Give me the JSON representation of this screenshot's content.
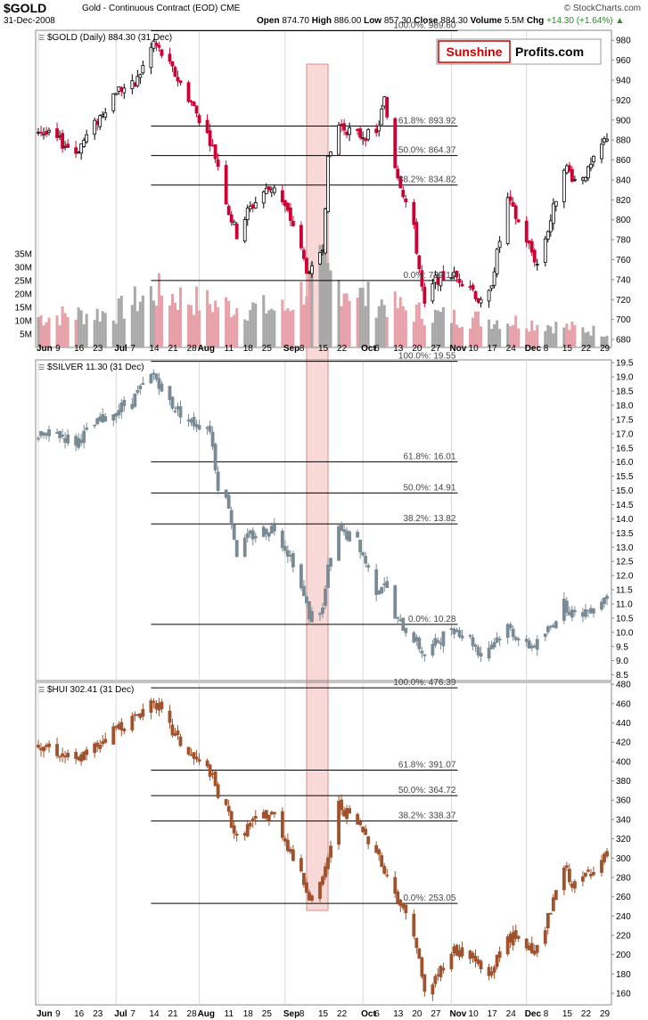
{
  "header": {
    "symbol": "$GOLD",
    "description": "Gold - Continuous Contract (EOD)",
    "exchange": "CME",
    "date": "31-Dec-2008",
    "open_label": "Open",
    "open": "874.70",
    "high_label": "High",
    "high": "886.00",
    "low_label": "Low",
    "low": "857.30",
    "close_label": "Close",
    "close": "884.30",
    "volume_label": "Volume",
    "volume": "5.5M",
    "chg_label": "Chg",
    "chg": "+14.30 (+1.64%)",
    "brand": "© StockCharts.com",
    "logo_left": "Sunshine",
    "logo_right": "Profits.com"
  },
  "colors": {
    "up": "#000000",
    "down": "#cc0033",
    "silver": "#7a8a95",
    "hui": "#a0522d",
    "highlight": "#f4b8b8",
    "vol_up": "#a8a8a8",
    "vol_down": "#e8a0a8"
  },
  "x_axis": {
    "labels": [
      {
        "text": "Jun",
        "bold": true,
        "date": "2008-06-02"
      },
      {
        "text": "9",
        "date": "2008-06-09"
      },
      {
        "text": "16",
        "date": "2008-06-16"
      },
      {
        "text": "23",
        "date": "2008-06-23"
      },
      {
        "text": "Jul",
        "bold": true,
        "date": "2008-07-01"
      },
      {
        "text": "7",
        "date": "2008-07-07"
      },
      {
        "text": "14",
        "date": "2008-07-14"
      },
      {
        "text": "21",
        "date": "2008-07-21"
      },
      {
        "text": "28",
        "date": "2008-07-28"
      },
      {
        "text": "Aug",
        "bold": true,
        "date": "2008-08-01"
      },
      {
        "text": "11",
        "date": "2008-08-11"
      },
      {
        "text": "18",
        "date": "2008-08-18"
      },
      {
        "text": "25",
        "date": "2008-08-25"
      },
      {
        "text": "Sep",
        "bold": true,
        "date": "2008-09-02"
      },
      {
        "text": "8",
        "date": "2008-09-08"
      },
      {
        "text": "15",
        "date": "2008-09-15"
      },
      {
        "text": "22",
        "date": "2008-09-22"
      },
      {
        "text": "Oct",
        "bold": true,
        "date": "2008-10-01"
      },
      {
        "text": "6",
        "date": "2008-10-06"
      },
      {
        "text": "13",
        "date": "2008-10-13"
      },
      {
        "text": "20",
        "date": "2008-10-20"
      },
      {
        "text": "27",
        "date": "2008-10-27"
      },
      {
        "text": "Nov",
        "bold": true,
        "date": "2008-11-03"
      },
      {
        "text": "10",
        "date": "2008-11-10"
      },
      {
        "text": "17",
        "date": "2008-11-17"
      },
      {
        "text": "24",
        "date": "2008-11-24"
      },
      {
        "text": "Dec",
        "bold": true,
        "date": "2008-12-01"
      },
      {
        "text": "8",
        "date": "2008-12-08"
      },
      {
        "text": "15",
        "date": "2008-12-15"
      },
      {
        "text": "22",
        "date": "2008-12-22"
      },
      {
        "text": "29",
        "date": "2008-12-29"
      }
    ]
  },
  "highlight_range": [
    "2008-09-10",
    "2008-09-18"
  ],
  "chart_data": [
    {
      "type": "candlestick",
      "title": "$GOLD (Daily) 884.30 (31 Dec)",
      "ylim": [
        672,
        990
      ],
      "yticks": [
        680,
        700,
        720,
        740,
        760,
        780,
        800,
        820,
        840,
        860,
        880,
        900,
        920,
        940,
        960,
        980
      ],
      "volume_ticks": [
        "5M",
        "10M",
        "15M",
        "20M",
        "25M",
        "30M",
        "35M"
      ],
      "volume_values": [
        5,
        10,
        15,
        20,
        25,
        30,
        35
      ],
      "path": [
        [
          "2008-06-02",
          890
        ],
        [
          "2008-06-09",
          880
        ],
        [
          "2008-06-16",
          868
        ],
        [
          "2008-06-23",
          895
        ],
        [
          "2008-07-01",
          930
        ],
        [
          "2008-07-08",
          935
        ],
        [
          "2008-07-15",
          978
        ],
        [
          "2008-07-22",
          950
        ],
        [
          "2008-07-29",
          918
        ],
        [
          "2008-08-05",
          880
        ],
        [
          "2008-08-08",
          855
        ],
        [
          "2008-08-12",
          808
        ],
        [
          "2008-08-15",
          785
        ],
        [
          "2008-08-19",
          808
        ],
        [
          "2008-08-25",
          828
        ],
        [
          "2008-08-29",
          834
        ],
        [
          "2008-09-05",
          795
        ],
        [
          "2008-09-11",
          742
        ],
        [
          "2008-09-16",
          775
        ],
        [
          "2008-09-18",
          858
        ],
        [
          "2008-09-22",
          895
        ],
        [
          "2008-09-29",
          885
        ],
        [
          "2008-10-06",
          885
        ],
        [
          "2008-10-09",
          920
        ],
        [
          "2008-10-13",
          855
        ],
        [
          "2008-10-20",
          790
        ],
        [
          "2008-10-24",
          712
        ],
        [
          "2008-10-28",
          740
        ],
        [
          "2008-11-03",
          745
        ],
        [
          "2008-11-10",
          735
        ],
        [
          "2008-11-14",
          715
        ],
        [
          "2008-11-17",
          725
        ],
        [
          "2008-11-24",
          820
        ],
        [
          "2008-12-01",
          780
        ],
        [
          "2008-12-05",
          755
        ],
        [
          "2008-12-10",
          800
        ],
        [
          "2008-12-15",
          855
        ],
        [
          "2008-12-19",
          840
        ],
        [
          "2008-12-24",
          848
        ],
        [
          "2008-12-31",
          884
        ]
      ],
      "volume_path": [
        [
          "2008-06-02",
          12
        ],
        [
          "2008-07-01",
          14
        ],
        [
          "2008-07-15",
          22
        ],
        [
          "2008-08-01",
          18
        ],
        [
          "2008-08-15",
          16
        ],
        [
          "2008-09-02",
          15
        ],
        [
          "2008-09-15",
          30
        ],
        [
          "2008-10-01",
          20
        ],
        [
          "2008-10-20",
          14
        ],
        [
          "2008-11-03",
          12
        ],
        [
          "2008-12-01",
          10
        ],
        [
          "2008-12-31",
          6
        ]
      ],
      "fib_levels": [
        {
          "label": "100.0%: 989.60",
          "value": 989.6
        },
        {
          "label": "61.8%: 893.92",
          "value": 893.92
        },
        {
          "label": "50.0%: 864.37",
          "value": 864.37
        },
        {
          "label": "38.2%: 834.82",
          "value": 834.82
        },
        {
          "label": "0.0%: 739.10",
          "value": 739.1
        }
      ],
      "fib_range": [
        "2008-07-14",
        "2008-10-29"
      ]
    },
    {
      "type": "candlestick",
      "title": "$SILVER 11.30 (31 Dec)",
      "ylim": [
        8.3,
        19.6
      ],
      "yticks": [
        8.5,
        9.0,
        9.5,
        10.0,
        10.5,
        11.0,
        11.5,
        12.0,
        12.5,
        13.0,
        13.5,
        14.0,
        14.5,
        15.0,
        15.5,
        16.0,
        16.5,
        17.0,
        17.5,
        18.0,
        18.5,
        19.0,
        19.5
      ],
      "path": [
        [
          "2008-06-02",
          16.9
        ],
        [
          "2008-06-09",
          17.0
        ],
        [
          "2008-06-16",
          16.7
        ],
        [
          "2008-06-23",
          17.3
        ],
        [
          "2008-07-01",
          17.8
        ],
        [
          "2008-07-08",
          18.3
        ],
        [
          "2008-07-15",
          19.1
        ],
        [
          "2008-07-22",
          18.0
        ],
        [
          "2008-07-29",
          17.4
        ],
        [
          "2008-08-05",
          17.2
        ],
        [
          "2008-08-08",
          15.2
        ],
        [
          "2008-08-12",
          14.5
        ],
        [
          "2008-08-15",
          12.8
        ],
        [
          "2008-08-19",
          13.3
        ],
        [
          "2008-08-25",
          13.6
        ],
        [
          "2008-08-29",
          13.7
        ],
        [
          "2008-09-05",
          12.5
        ],
        [
          "2008-09-11",
          10.6
        ],
        [
          "2008-09-16",
          10.8
        ],
        [
          "2008-09-18",
          12.2
        ],
        [
          "2008-09-22",
          13.6
        ],
        [
          "2008-09-29",
          13.2
        ],
        [
          "2008-10-06",
          11.5
        ],
        [
          "2008-10-09",
          11.8
        ],
        [
          "2008-10-13",
          10.5
        ],
        [
          "2008-10-20",
          9.8
        ],
        [
          "2008-10-24",
          9.2
        ],
        [
          "2008-10-28",
          9.6
        ],
        [
          "2008-11-03",
          10.2
        ],
        [
          "2008-11-10",
          9.8
        ],
        [
          "2008-11-14",
          9.2
        ],
        [
          "2008-11-17",
          9.5
        ],
        [
          "2008-11-24",
          10.2
        ],
        [
          "2008-12-01",
          9.5
        ],
        [
          "2008-12-05",
          9.6
        ],
        [
          "2008-12-10",
          10.2
        ],
        [
          "2008-12-15",
          11.0
        ],
        [
          "2008-12-19",
          10.6
        ],
        [
          "2008-12-24",
          10.8
        ],
        [
          "2008-12-31",
          11.3
        ]
      ],
      "fib_levels": [
        {
          "label": "100.0%: 19.55",
          "value": 19.55
        },
        {
          "label": "61.8%: 16.01",
          "value": 16.01
        },
        {
          "label": "50.0%: 14.91",
          "value": 14.91
        },
        {
          "label": "38.2%: 13.82",
          "value": 13.82
        },
        {
          "label": "0.0%: 10.28",
          "value": 10.28
        }
      ],
      "fib_range": [
        "2008-07-14",
        "2008-10-29"
      ]
    },
    {
      "type": "candlestick",
      "title": "$HUI 302.41 (31 Dec)",
      "ylim": [
        148,
        482
      ],
      "yticks": [
        160,
        180,
        200,
        220,
        240,
        260,
        280,
        300,
        320,
        340,
        360,
        380,
        400,
        420,
        440,
        460,
        480
      ],
      "path": [
        [
          "2008-06-02",
          420
        ],
        [
          "2008-06-09",
          410
        ],
        [
          "2008-06-16",
          400
        ],
        [
          "2008-06-23",
          415
        ],
        [
          "2008-07-01",
          435
        ],
        [
          "2008-07-08",
          445
        ],
        [
          "2008-07-15",
          465
        ],
        [
          "2008-07-22",
          430
        ],
        [
          "2008-07-29",
          405
        ],
        [
          "2008-08-05",
          390
        ],
        [
          "2008-08-08",
          365
        ],
        [
          "2008-08-12",
          345
        ],
        [
          "2008-08-15",
          320
        ],
        [
          "2008-08-19",
          332
        ],
        [
          "2008-08-25",
          345
        ],
        [
          "2008-08-29",
          345
        ],
        [
          "2008-09-05",
          300
        ],
        [
          "2008-09-11",
          262
        ],
        [
          "2008-09-16",
          275
        ],
        [
          "2008-09-18",
          300
        ],
        [
          "2008-09-22",
          355
        ],
        [
          "2008-09-29",
          335
        ],
        [
          "2008-10-06",
          310
        ],
        [
          "2008-10-09",
          285
        ],
        [
          "2008-10-13",
          265
        ],
        [
          "2008-10-20",
          225
        ],
        [
          "2008-10-24",
          160
        ],
        [
          "2008-10-28",
          175
        ],
        [
          "2008-11-03",
          205
        ],
        [
          "2008-11-10",
          200
        ],
        [
          "2008-11-14",
          185
        ],
        [
          "2008-11-17",
          178
        ],
        [
          "2008-11-24",
          220
        ],
        [
          "2008-12-01",
          210
        ],
        [
          "2008-12-05",
          205
        ],
        [
          "2008-12-10",
          245
        ],
        [
          "2008-12-15",
          290
        ],
        [
          "2008-12-19",
          270
        ],
        [
          "2008-12-24",
          285
        ],
        [
          "2008-12-31",
          302
        ]
      ],
      "fib_levels": [
        {
          "label": "100.0%: 476.39",
          "value": 476.39
        },
        {
          "label": "61.8%: 391.07",
          "value": 391.07
        },
        {
          "label": "50.0%: 364.72",
          "value": 364.72
        },
        {
          "label": "38.2%: 338.37",
          "value": 338.37
        },
        {
          "label": "0.0%: 253.05",
          "value": 253.05
        }
      ],
      "fib_range": [
        "2008-07-14",
        "2008-10-29"
      ]
    }
  ]
}
